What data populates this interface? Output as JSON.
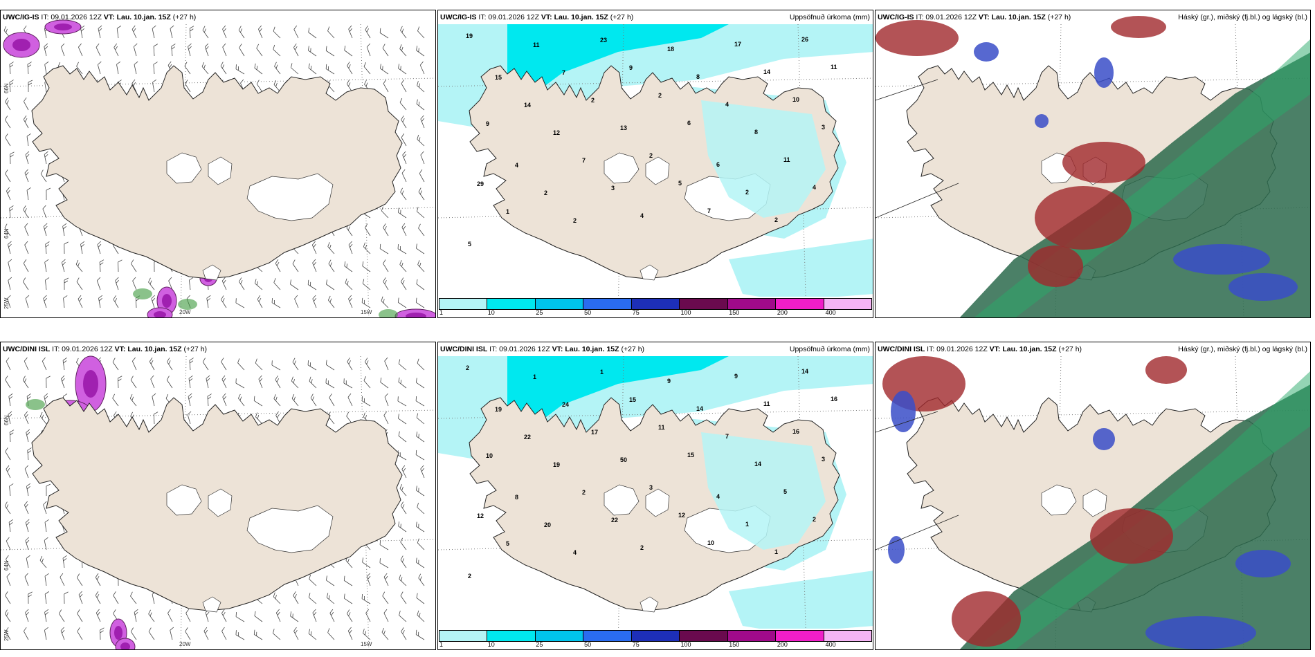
{
  "panels": [
    {
      "id": "p1",
      "model": "UWC/IG-IS",
      "it": "IT: 09.01.2026 12Z",
      "vt": "VT: Lau. 10.jan. 15Z",
      "lead": "(+27 h)",
      "right_title": "",
      "type": "wind"
    },
    {
      "id": "p2",
      "model": "UWC/IG-IS",
      "it": "IT: 09.01.2026 12Z",
      "vt": "VT: Lau. 10.jan. 15Z",
      "lead": "(+27 h)",
      "right_title": "Uppsöfnuð úrkoma (mm)",
      "type": "precip"
    },
    {
      "id": "p3",
      "model": "UWC/IG-IS",
      "it": "IT: 09.01.2026 12Z",
      "vt": "VT: Lau. 10.jan. 15Z",
      "lead": "(+27 h)",
      "right_title": "Háský (gr.), miðský (fj.bl.) og lágský (bl.)",
      "type": "cloud"
    },
    {
      "id": "p4",
      "model": "UWC/DINI ISL",
      "it": "IT: 09.01.2026 12Z",
      "vt": "VT: Lau. 10.jan. 15Z",
      "lead": "(+27 h)",
      "right_title": "",
      "type": "wind"
    },
    {
      "id": "p5",
      "model": "UWC/DINI ISL",
      "it": "IT: 09.01.2026 12Z",
      "vt": "VT: Lau. 10.jan. 15Z",
      "lead": "(+27 h)",
      "right_title": "Uppsöfnuð úrkoma (mm)",
      "type": "precip"
    },
    {
      "id": "p6",
      "model": "UWC/DINI ISL",
      "it": "IT: 09.01.2026 12Z",
      "vt": "VT: Lau. 10.jan. 15Z",
      "lead": "(+27 h)",
      "right_title": "Háský (gr.), miðský (fj.bl.) og lágský (bl.)",
      "type": "cloud"
    }
  ],
  "colorbar": {
    "labels": [
      "1",
      "10",
      "25",
      "50",
      "75",
      "100",
      "150",
      "200",
      "400"
    ],
    "colors": [
      "#b4f4f6",
      "#00e8ef",
      "#00c4ec",
      "#2a6cf0",
      "#1d2fb8",
      "#6a0a4e",
      "#a00a8a",
      "#f01ec8",
      "#f4b4f4"
    ]
  },
  "coords": {
    "lon_labels": [
      "20W",
      "15W"
    ],
    "lat_labels": [
      "66N",
      "64N",
      "25W"
    ]
  },
  "colors": {
    "land": "#ede3d7",
    "glacier": "#ffffff",
    "precip_light": "#b4f4f6",
    "precip_med": "#00e8ef",
    "cloud_high": "#2c6a4c",
    "cloud_mid": "#3a4ec8",
    "cloud_low": "#a0282c"
  },
  "precip_numbers": {
    "p2": [
      "19",
      "11",
      "23",
      "18",
      "17",
      "26",
      "15",
      "7",
      "9",
      "8",
      "14",
      "11",
      "14",
      "2",
      "2",
      "4",
      "10",
      "9",
      "12",
      "13",
      "6",
      "8",
      "3",
      "4",
      "7",
      "2",
      "6",
      "11",
      "29",
      "2",
      "3",
      "5",
      "2",
      "4",
      "1",
      "2",
      "4",
      "7",
      "2",
      "5"
    ],
    "p5": [
      "2",
      "1",
      "1",
      "9",
      "9",
      "14",
      "19",
      "24",
      "15",
      "14",
      "11",
      "16",
      "22",
      "17",
      "11",
      "7",
      "16",
      "10",
      "19",
      "50",
      "15",
      "14",
      "3",
      "8",
      "2",
      "3",
      "4",
      "5",
      "12",
      "20",
      "22",
      "12",
      "1",
      "2",
      "5",
      "4",
      "2",
      "10",
      "1",
      "2"
    ]
  },
  "barb_glyph": "wind-barb"
}
